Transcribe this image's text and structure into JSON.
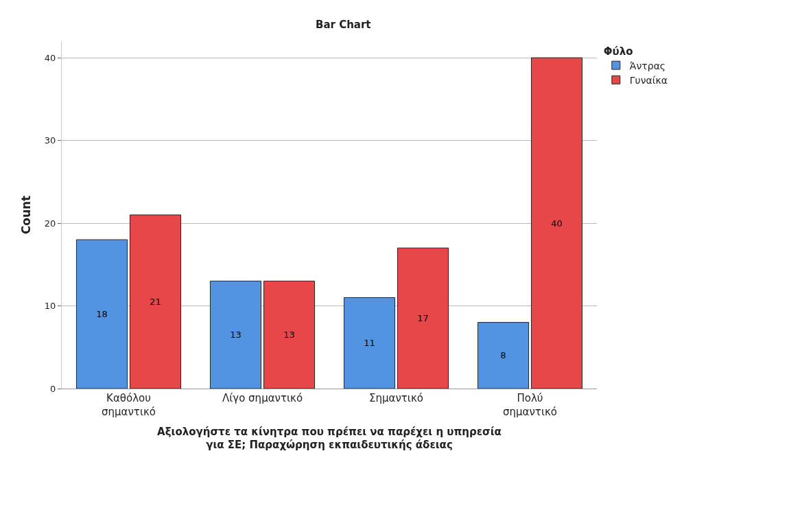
{
  "chart_data": {
    "type": "bar",
    "title": "Bar Chart",
    "xlabel": "Αξιολογήστε τα κίνητρα που πρέπει να παρέχει η υπηρεσία\nγια ΣΕ; Παραχώρηση εκπαιδευτικής άδειας",
    "ylabel": "Count",
    "legend_title": "Φύλο",
    "categories": [
      "Καθόλου\nσημαντικό",
      "Λίγο σημαντικό",
      "Σημαντικό",
      "Πολύ\nσημαντικό"
    ],
    "series": [
      {
        "name": "Άντρας",
        "color": "#5294e2",
        "values": [
          18,
          13,
          11,
          8
        ]
      },
      {
        "name": "Γυναίκα",
        "color": "#e8474a",
        "values": [
          21,
          13,
          17,
          40
        ]
      }
    ],
    "ylim": [
      0,
      42
    ],
    "yticks": [
      0,
      10,
      20,
      30,
      40
    ],
    "grid": "y",
    "legend": "top right",
    "data_labels": true
  }
}
